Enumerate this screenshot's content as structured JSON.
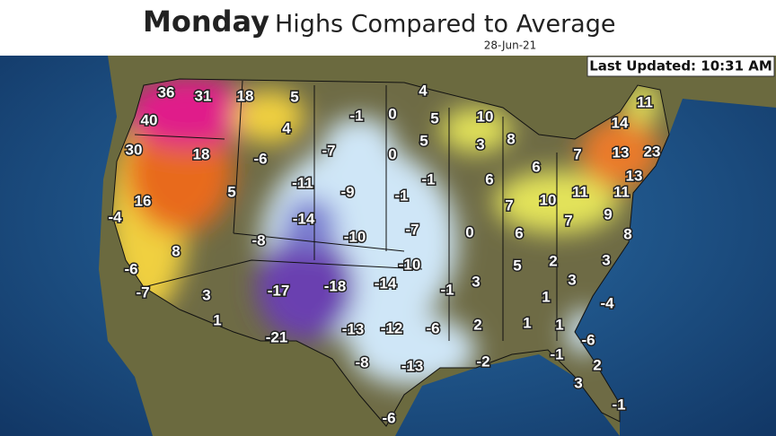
{
  "header": {
    "title_day": "Monday",
    "title_rest": "Highs Compared to Average",
    "date": "28-Jun-21",
    "last_updated": "Last Updated: 10:31 AM"
  },
  "labels": [
    36,
    31,
    18,
    5,
    4,
    -1,
    0,
    5,
    10,
    40,
    4,
    3,
    8,
    14,
    11,
    30,
    18,
    -6,
    -7,
    0,
    5,
    6,
    7,
    13,
    23,
    13,
    -11,
    -9,
    -1,
    -1,
    6,
    16,
    5,
    -14,
    7,
    10,
    11,
    11,
    9,
    -4,
    7,
    -10,
    -7,
    0,
    6,
    8,
    8,
    -8,
    -10,
    5,
    2,
    3,
    -6,
    -17,
    -18,
    -14,
    3,
    -1,
    3,
    1,
    -7,
    3,
    -4,
    1,
    -13,
    -12,
    -6,
    2,
    1,
    1,
    -21,
    -6,
    -1,
    2,
    -8,
    -13,
    -2,
    3,
    -1,
    -6
  ]
}
